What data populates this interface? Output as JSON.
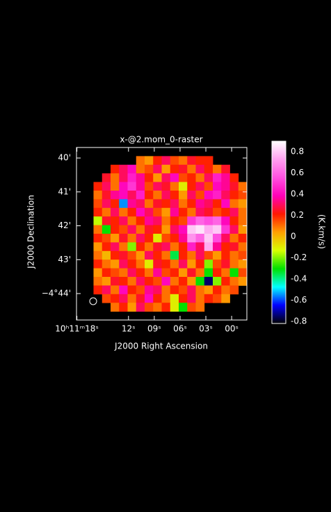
{
  "chart_data": {
    "type": "raster",
    "title": "x-@2.mom_0-raster",
    "xlabel": "J2000 Right Ascension",
    "ylabel": "J2000 Declination",
    "colorbar_label": "(K.km/s)",
    "xlim": [
      18.05,
      -1.77
    ],
    "xticks": [
      {
        "value": 18,
        "label": "10ʰ11ᵐ18ˢ"
      },
      {
        "value": 12,
        "label": "12ˢ"
      },
      {
        "value": 9,
        "label": "09ˢ"
      },
      {
        "value": 6,
        "label": "06ˢ"
      },
      {
        "value": 3,
        "label": "03ˢ"
      },
      {
        "value": 0,
        "label": "00ˢ"
      }
    ],
    "ylim": [
      -44.78,
      -39.69
    ],
    "yticks": [
      {
        "value": -40,
        "label": "40'"
      },
      {
        "value": -41,
        "label": "41'"
      },
      {
        "value": -42,
        "label": "42'"
      },
      {
        "value": -43,
        "label": "43'"
      },
      {
        "value": -44,
        "label": "−4°44'"
      }
    ],
    "clim": [
      -0.82,
      0.9
    ],
    "cticks": [
      0.8,
      0.6,
      0.4,
      0.2,
      0,
      -0.2,
      -0.4,
      -0.6,
      -0.8
    ],
    "colormap": [
      "#000000",
      "#0000ff",
      "#00ffff",
      "#00e000",
      "#d8ff00",
      "#ffa000",
      "#ff1800",
      "#ff00b8",
      "#ff50e0",
      "#ffa0f0",
      "#ffffff"
    ],
    "raster": [
      [
        null,
        null,
        null,
        null,
        null,
        null,
        null,
        null,
        null,
        null,
        null,
        null,
        null,
        null,
        null,
        null,
        null,
        null,
        null,
        null
      ],
      [
        null,
        null,
        null,
        null,
        null,
        null,
        null,
        0.1,
        0.05,
        0.2,
        0.3,
        0.15,
        0.1,
        0.25,
        0.2,
        0.2,
        null,
        null,
        null,
        null
      ],
      [
        null,
        null,
        null,
        null,
        0.2,
        0.3,
        0.4,
        0.1,
        0.15,
        0.3,
        0.05,
        0.2,
        0.25,
        0.1,
        0.3,
        0.2,
        0.1,
        0.25,
        null,
        null
      ],
      [
        null,
        null,
        null,
        0.25,
        0.1,
        0.3,
        0.45,
        0.35,
        0.2,
        0.05,
        0.3,
        0.4,
        0.15,
        0.2,
        0.1,
        0.3,
        0.45,
        0.35,
        0.2,
        null
      ],
      [
        null,
        null,
        0.2,
        0.3,
        0.1,
        0.4,
        0.5,
        0.35,
        0.15,
        0.3,
        0.25,
        0.1,
        -0.1,
        0.2,
        0.3,
        0.15,
        0.4,
        0.35,
        0.25,
        0.1
      ],
      [
        null,
        null,
        0.1,
        0.25,
        0.35,
        0.4,
        0.3,
        0.45,
        0.2,
        0.1,
        0.3,
        0.2,
        0.05,
        0.3,
        0.15,
        0.4,
        0.45,
        0.3,
        0.2,
        0.15
      ],
      [
        null,
        null,
        0.15,
        0.3,
        0.2,
        -0.55,
        0.35,
        0.3,
        0.1,
        0.25,
        0.2,
        0.3,
        0.1,
        0.2,
        0.35,
        0.3,
        0.2,
        0.4,
        0.1,
        0.05
      ],
      [
        null,
        null,
        0.2,
        0.1,
        0.3,
        0.1,
        0.2,
        0.4,
        0.3,
        0.15,
        0.05,
        0.35,
        0.2,
        0.1,
        0.3,
        0.25,
        0.15,
        0.2,
        0.3,
        0.1
      ],
      [
        null,
        null,
        -0.15,
        0.25,
        0.2,
        0.3,
        0.1,
        0.2,
        0.35,
        0.3,
        0.1,
        0.2,
        0.15,
        0.5,
        0.6,
        0.55,
        0.6,
        0.4,
        0.2,
        0.1
      ],
      [
        null,
        null,
        0.1,
        -0.3,
        0.2,
        0.15,
        0.3,
        0.1,
        0.25,
        0.2,
        0.05,
        0.3,
        0.4,
        0.8,
        0.85,
        0.75,
        0.8,
        0.5,
        0.3,
        0.05
      ],
      [
        null,
        null,
        0.2,
        0.15,
        0.05,
        0.25,
        0.1,
        0.3,
        0.2,
        -0.1,
        0.15,
        0.2,
        0.35,
        0.7,
        0.6,
        0.8,
        0.55,
        0.3,
        0.1,
        0.2
      ],
      [
        null,
        null,
        0.05,
        0.2,
        0.3,
        0.1,
        -0.2,
        0.2,
        0.1,
        0.25,
        0.3,
        0.1,
        0.2,
        0.45,
        0.3,
        0.75,
        0.35,
        0.2,
        0.25,
        0.1
      ],
      [
        null,
        null,
        0.1,
        0.0,
        0.2,
        0.25,
        0.15,
        0.05,
        0.3,
        0.2,
        0.1,
        -0.35,
        0.2,
        0.1,
        0.3,
        0.15,
        0.05,
        0.2,
        0.1,
        0.15
      ],
      [
        null,
        null,
        0.2,
        0.1,
        0.05,
        0.3,
        0.2,
        0.1,
        -0.1,
        0.25,
        0.2,
        0.1,
        0.3,
        0.05,
        0.2,
        -0.2,
        0.15,
        0.25,
        0.1,
        0.05
      ],
      [
        null,
        null,
        0.05,
        0.2,
        0.15,
        0.1,
        0.3,
        0.2,
        0.1,
        0.35,
        0.15,
        0.2,
        0.05,
        0.25,
        0.1,
        -0.3,
        0.2,
        0.1,
        -0.3,
        0.15
      ],
      [
        null,
        null,
        0.1,
        0.05,
        0.25,
        0.2,
        0.1,
        0.3,
        0.2,
        0.15,
        0.4,
        0.1,
        0.2,
        0.05,
        -0.3,
        -0.75,
        -0.2,
        0.2,
        0.1,
        0.05
      ],
      [
        null,
        null,
        0.2,
        0.3,
        0.1,
        0.4,
        0.2,
        0.15,
        0.35,
        0.3,
        0.1,
        0.2,
        0.15,
        0.3,
        0.1,
        0.05,
        0.2,
        0.1,
        0.15,
        null
      ],
      [
        null,
        null,
        null,
        0.15,
        0.2,
        0.3,
        0.1,
        0.25,
        0.4,
        0.2,
        0.1,
        -0.1,
        0.2,
        0.3,
        0.1,
        0.2,
        0.15,
        0.05,
        null,
        null
      ],
      [
        null,
        null,
        null,
        null,
        0.1,
        0.2,
        0.05,
        0.3,
        0.15,
        0.1,
        0.2,
        -0.1,
        -0.3,
        0.15,
        0.1,
        null,
        null,
        null,
        null,
        null
      ],
      [
        null,
        null,
        null,
        null,
        null,
        null,
        null,
        null,
        null,
        null,
        null,
        null,
        null,
        null,
        null,
        null,
        null,
        null,
        null,
        null
      ]
    ]
  }
}
